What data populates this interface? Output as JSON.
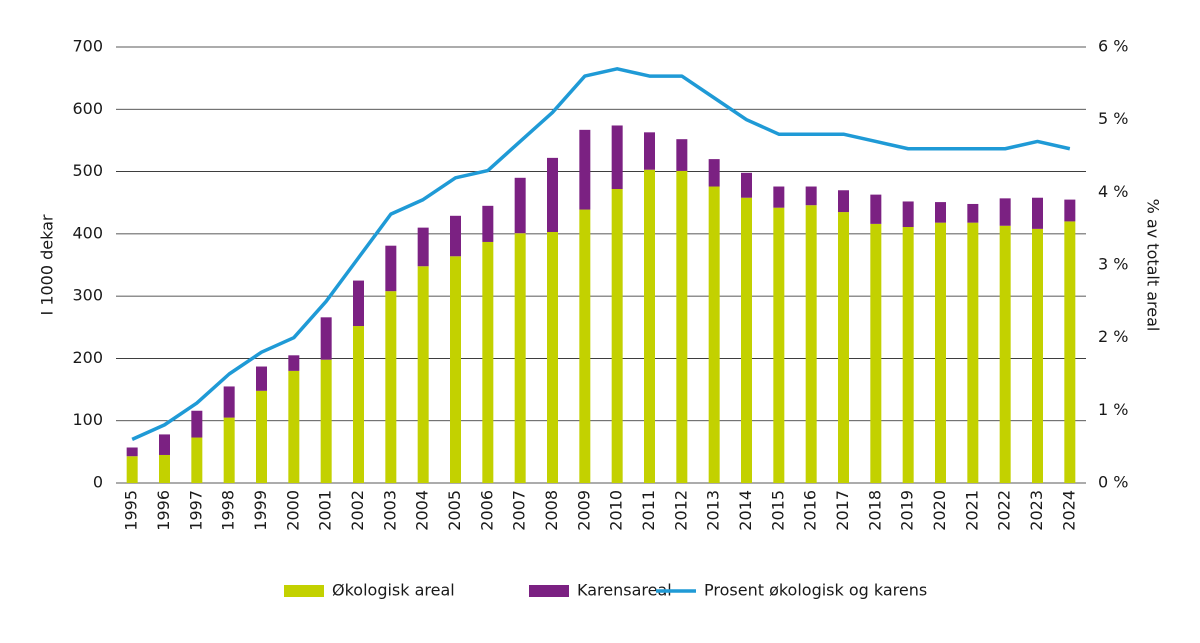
{
  "chart_data": {
    "type": "bar",
    "stacked": true,
    "ylabel": "I 1000 dekar",
    "y2label": "% av totalt areal",
    "categories": [
      "1995",
      "1996",
      "1997",
      "1998",
      "1999",
      "2000",
      "2001",
      "2002",
      "2003",
      "2004",
      "2005",
      "2006",
      "2007",
      "2008",
      "2009",
      "2010",
      "2011",
      "2012",
      "2013",
      "2014",
      "2015",
      "2016",
      "2017",
      "2018",
      "2019",
      "2020",
      "2021",
      "2022",
      "2023",
      "2024"
    ],
    "series": [
      {
        "name": "Økologisk areal",
        "color": "#c3d100",
        "type": "bar",
        "values": [
          43,
          45,
          73,
          105,
          148,
          180,
          198,
          252,
          308,
          348,
          364,
          387,
          401,
          403,
          439,
          472,
          503,
          501,
          476,
          458,
          442,
          446,
          435,
          416,
          411,
          418,
          418,
          413,
          408,
          420
        ]
      },
      {
        "name": "Karensareal",
        "color": "#7b2182",
        "type": "bar",
        "values": [
          14,
          33,
          43,
          50,
          39,
          25,
          68,
          73,
          73,
          62,
          65,
          58,
          89,
          119,
          128,
          102,
          60,
          51,
          44,
          40,
          34,
          30,
          35,
          47,
          41,
          33,
          30,
          44,
          50,
          35
        ]
      },
      {
        "name": "Prosent økologisk og karens",
        "color": "#1f9ad6",
        "type": "line",
        "axis": "y2",
        "values": [
          0.6,
          0.8,
          1.1,
          1.5,
          1.8,
          2.0,
          2.5,
          3.1,
          3.7,
          3.9,
          4.2,
          4.3,
          4.7,
          5.1,
          5.6,
          5.7,
          5.6,
          5.6,
          5.3,
          5.0,
          4.8,
          4.8,
          4.8,
          4.7,
          4.6,
          4.6,
          4.6,
          4.6,
          4.7,
          4.6
        ]
      }
    ],
    "ylim": [
      0,
      700
    ],
    "yticks": [
      0,
      100,
      200,
      300,
      400,
      500,
      600,
      700
    ],
    "y2lim": [
      0,
      6
    ],
    "y2ticks": [
      {
        "value": 0,
        "label": "0 %"
      },
      {
        "value": 1,
        "label": "1 %"
      },
      {
        "value": 2,
        "label": "2 %"
      },
      {
        "value": 3,
        "label": "3 %"
      },
      {
        "value": 4,
        "label": "4 %"
      },
      {
        "value": 5,
        "label": "5 %"
      },
      {
        "value": 6,
        "label": "6 %"
      }
    ],
    "grid": true,
    "legend": "bottom"
  }
}
